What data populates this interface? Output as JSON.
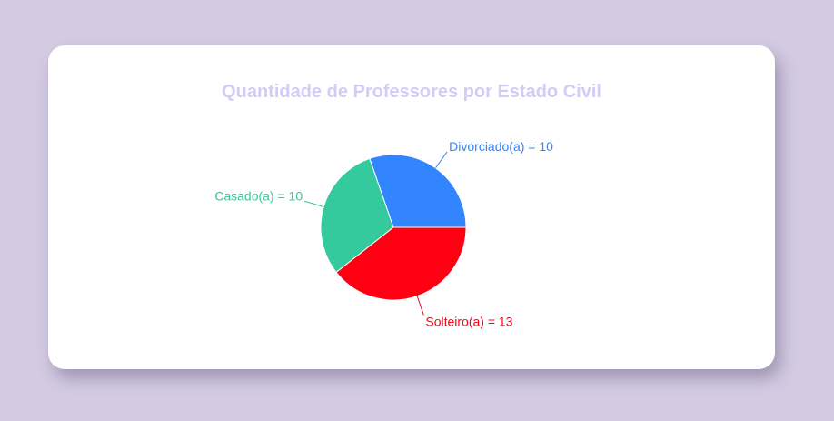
{
  "chart_data": {
    "type": "pie",
    "title": "Quantidade de Professores por Estado Civil",
    "slices": [
      {
        "label": "Divorciado(a) = 10",
        "value": 10,
        "color": "#3384ff"
      },
      {
        "label": "Solteiro(a) = 13",
        "value": 13,
        "color": "#ff0013"
      },
      {
        "label": "Casado(a) = 10",
        "value": 10,
        "color": "#35c99e"
      }
    ],
    "legend": "none"
  },
  "colors": {
    "background": "#d4cbe3",
    "card": "#ffffff",
    "title": "#d2ccf6"
  }
}
